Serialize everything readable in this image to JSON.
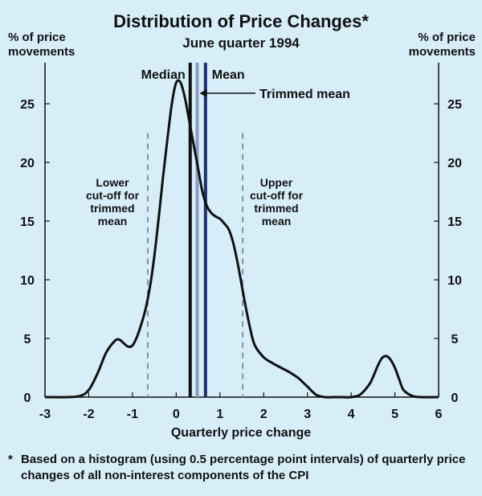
{
  "chart_data": {
    "type": "line",
    "title": "Distribution of Price Changes*",
    "subtitle": "June quarter 1994",
    "ylabel_left": [
      "% of price",
      "movements"
    ],
    "ylabel_right": [
      "% of price",
      "movements"
    ],
    "xlabel": "Quarterly price change",
    "xlim": [
      -3,
      6
    ],
    "ylim": [
      0,
      28.5
    ],
    "xticks": [
      -3,
      -2,
      -1,
      0,
      1,
      2,
      3,
      4,
      5,
      6
    ],
    "yticks": [
      0,
      5,
      10,
      15,
      20,
      25
    ],
    "series": [
      {
        "name": "Distribution",
        "x": [
          -3.0,
          -2.5,
          -2.2,
          -2.0,
          -1.8,
          -1.6,
          -1.4,
          -1.3,
          -1.2,
          -1.1,
          -1.0,
          -0.9,
          -0.8,
          -0.7,
          -0.6,
          -0.5,
          -0.4,
          -0.3,
          -0.2,
          -0.1,
          0.0,
          0.1,
          0.2,
          0.3,
          0.4,
          0.5,
          0.6,
          0.7,
          0.8,
          0.9,
          1.0,
          1.1,
          1.2,
          1.3,
          1.4,
          1.5,
          1.6,
          1.7,
          1.8,
          2.0,
          2.2,
          2.4,
          2.6,
          2.8,
          3.0,
          3.2,
          3.4,
          3.6,
          3.8,
          4.0,
          4.2,
          4.4,
          4.5,
          4.6,
          4.7,
          4.8,
          4.9,
          5.0,
          5.1,
          5.2,
          5.4,
          5.6,
          6.0
        ],
        "y": [
          0,
          0,
          0.1,
          0.6,
          2.0,
          3.8,
          4.8,
          4.9,
          4.6,
          4.3,
          4.4,
          5.1,
          6.2,
          7.5,
          9.4,
          12.0,
          15.3,
          18.8,
          22.0,
          25.0,
          26.8,
          26.8,
          25.5,
          23.5,
          21.5,
          19.5,
          17.5,
          16.3,
          15.7,
          15.4,
          15.2,
          14.8,
          14.3,
          13.2,
          11.5,
          9.5,
          7.5,
          5.7,
          4.4,
          3.4,
          2.9,
          2.5,
          2.1,
          1.6,
          0.9,
          0.2,
          0.0,
          0.0,
          0.0,
          0.0,
          0.2,
          1.0,
          1.7,
          2.6,
          3.3,
          3.5,
          3.2,
          2.5,
          1.5,
          0.6,
          0.1,
          0.0,
          0.0
        ]
      }
    ],
    "reference_lines": [
      {
        "name": "Lower cut-off for trimmed mean",
        "x": -0.65,
        "style": "dashed"
      },
      {
        "name": "Median",
        "x": 0.32,
        "style": "solid-black"
      },
      {
        "name": "Trimmed mean",
        "x": 0.48,
        "style": "solid-light-blue"
      },
      {
        "name": "Mean",
        "x": 0.67,
        "style": "solid-navy"
      },
      {
        "name": "Upper cut-off for trimmed mean",
        "x": 1.52,
        "style": "dashed"
      }
    ],
    "annotations": {
      "median": "Median",
      "mean": "Mean",
      "trimmed_mean": "Trimmed mean",
      "lower_cutoff": [
        "Lower",
        "cut-off for",
        "trimmed",
        "mean"
      ],
      "upper_cutoff": [
        "Upper",
        "cut-off for",
        "trimmed",
        "mean"
      ]
    },
    "colors": {
      "background": "#d7eef9",
      "curve": "#111111",
      "dashed": "#7f93a8",
      "median": "#111111",
      "trimmed_mean": "#8a9ac4",
      "mean": "#1a2f6e"
    }
  },
  "footnote": {
    "marker": "*",
    "text": "Based on a histogram (using 0.5 percentage point intervals) of quarterly price changes of all non-interest components of the CPI"
  }
}
